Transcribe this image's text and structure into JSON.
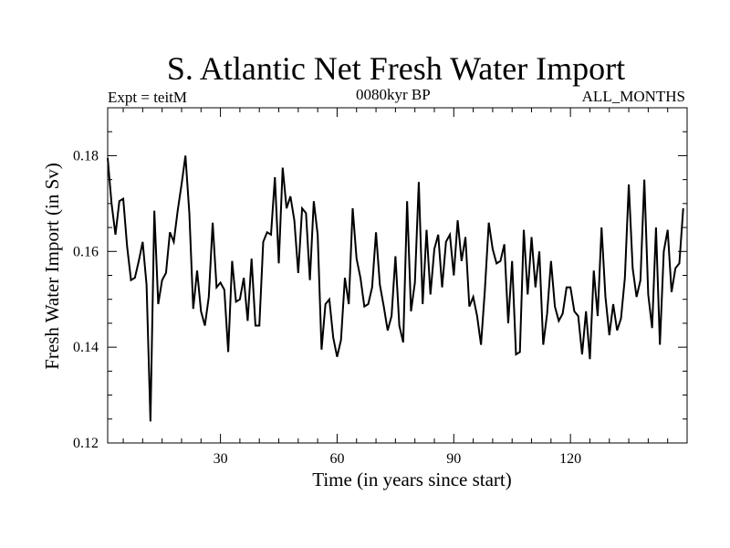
{
  "chart_data": {
    "type": "line",
    "title": "S. Atlantic Net Fresh Water Import",
    "subtitle_left": "Expt = teitM",
    "subtitle_center": "0080kyr BP",
    "subtitle_right": "ALL_MONTHS",
    "xlabel": "Time (in years since start)",
    "ylabel": "Fresh Water Import (in Sv)",
    "xlim": [
      1,
      150
    ],
    "ylim": [
      0.12,
      0.19
    ],
    "xticks": [
      30,
      60,
      90,
      120
    ],
    "yticks": [
      0.12,
      0.14,
      0.16,
      0.18
    ],
    "ytick_labels": [
      "0.12",
      "0.14",
      "0.16",
      "0.18"
    ],
    "series": [
      {
        "name": "fresh_water_import",
        "x_start": 1,
        "x_step": 1,
        "values": [
          0.1795,
          0.17,
          0.1635,
          0.1705,
          0.171,
          0.161,
          0.154,
          0.1545,
          0.158,
          0.162,
          0.153,
          0.1245,
          0.1685,
          0.149,
          0.154,
          0.1555,
          0.164,
          0.162,
          0.1685,
          0.174,
          0.18,
          0.168,
          0.148,
          0.156,
          0.1475,
          0.1445,
          0.1505,
          0.166,
          0.1525,
          0.1535,
          0.152,
          0.139,
          0.158,
          0.1495,
          0.15,
          0.1545,
          0.1455,
          0.1585,
          0.1445,
          0.1445,
          0.162,
          0.164,
          0.1635,
          0.1755,
          0.1575,
          0.1775,
          0.169,
          0.1715,
          0.1665,
          0.1555,
          0.169,
          0.168,
          0.154,
          0.1705,
          0.1635,
          0.1395,
          0.149,
          0.15,
          0.142,
          0.138,
          0.1415,
          0.1545,
          0.149,
          0.169,
          0.1585,
          0.1545,
          0.1485,
          0.149,
          0.1525,
          0.164,
          0.153,
          0.1485,
          0.1435,
          0.1465,
          0.159,
          0.1445,
          0.141,
          0.1705,
          0.1475,
          0.1535,
          0.1745,
          0.149,
          0.1645,
          0.151,
          0.1605,
          0.1635,
          0.1525,
          0.162,
          0.1635,
          0.155,
          0.1665,
          0.158,
          0.163,
          0.1485,
          0.1505,
          0.1465,
          0.1405,
          0.152,
          0.166,
          0.1605,
          0.1575,
          0.158,
          0.1615,
          0.145,
          0.158,
          0.1385,
          0.139,
          0.1645,
          0.151,
          0.163,
          0.1525,
          0.16,
          0.1405,
          0.147,
          0.158,
          0.1485,
          0.1455,
          0.147,
          0.1525,
          0.1525,
          0.1475,
          0.1465,
          0.1385,
          0.1475,
          0.1375,
          0.156,
          0.1465,
          0.165,
          0.1505,
          0.1425,
          0.149,
          0.1435,
          0.146,
          0.1545,
          0.174,
          0.1565,
          0.1505,
          0.154,
          0.175,
          0.151,
          0.144,
          0.165,
          0.1405,
          0.16,
          0.1645,
          0.1515,
          0.1565,
          0.1575,
          0.169
        ]
      }
    ]
  }
}
